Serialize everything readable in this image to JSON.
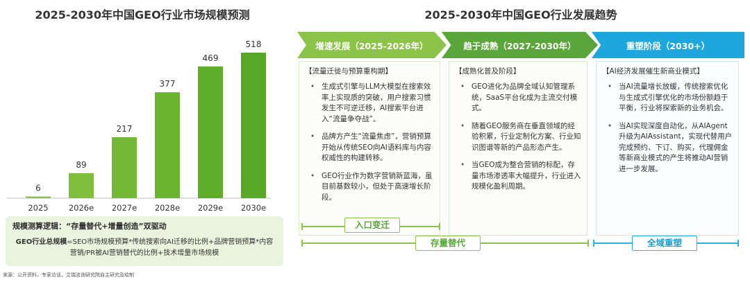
{
  "left_title": "2025-2030年中国GEO行业市场规模预测",
  "right_title": "2025-2030年中国GEO行业发展趋势",
  "chart_data": {
    "type": "bar",
    "title": "2025-2030年中国GEO行业市场规模预测",
    "categories": [
      "2025",
      "2026e",
      "2027e",
      "2028e",
      "2029e",
      "2030e"
    ],
    "values": [
      6,
      89,
      217,
      377,
      469,
      518
    ],
    "colors": [
      "#8cc44a",
      "#7fbf3c",
      "#74b936",
      "#6ab430",
      "#5fae2b",
      "#56a826"
    ],
    "grid": false,
    "xlabel": "",
    "ylabel": ""
  },
  "formula": {
    "title": "规模测算逻辑：“存量替代+增量创造”双驱动",
    "lead": "GEO行业总规模",
    "text": "=SEO市场规模预算*传统搜索向AI迁移的比例+品牌营销预算*内容营销/PR被AI营销替代的比例+技术增量市场规模"
  },
  "source": "来源：公开资料，专家访谈，艾瑞咨询研究院自主研究及绘制",
  "phases": [
    {
      "label": "增速发展（2025-2026年）",
      "head": "【流量迁徙与预算重构期】",
      "bullets": [
        "生成式引擎与LLM大模型在搜索效率上实现质的突破，用户搜索习惯发生不可逆迁移，AI搜索平台进入“流量争夺战”。",
        "品牌方产生“流量焦虑”，营销预算开始从传统SEO向AI语料库与内容权威性的构建转移。",
        "GEO行业作为数字营销新蓝海，虽目前基数较小，但处于高速增长阶段。"
      ]
    },
    {
      "label": "趋于成熟（2027-2030年）",
      "head": "【成熟化普及阶段】",
      "bullets": [
        "GEO进化为品牌全域认知管理系统，SaaS平台化成为主流交付模式。",
        "随着GEO服务商在垂直领域的经验积累，行业定制化方案、行业知识图谱等新的产品形态产生。",
        "当GEO成为整合营销的标配，存量市场渗透率大幅提升，行业进入规模化盈利周期。"
      ]
    },
    {
      "label": "重塑阶段（2030+）",
      "head": "【AI经济发展催生新商业模式】",
      "bullets": [
        "当AI流量增长放缓，传统搜索优化与生成式引擎优化的市场份额趋于平衡，行业将探索新的业务机会。",
        "当AI实现深度自动化，从AIAgent升级为AIAssistant，实现代替用户完成预约、下订、购买，代理佣金等新商业模式的产生将推动AI营销进一步发展。"
      ]
    }
  ],
  "brackets": {
    "entry": "入口变迁",
    "replace": "存量替代",
    "reshape": "全域重塑"
  }
}
